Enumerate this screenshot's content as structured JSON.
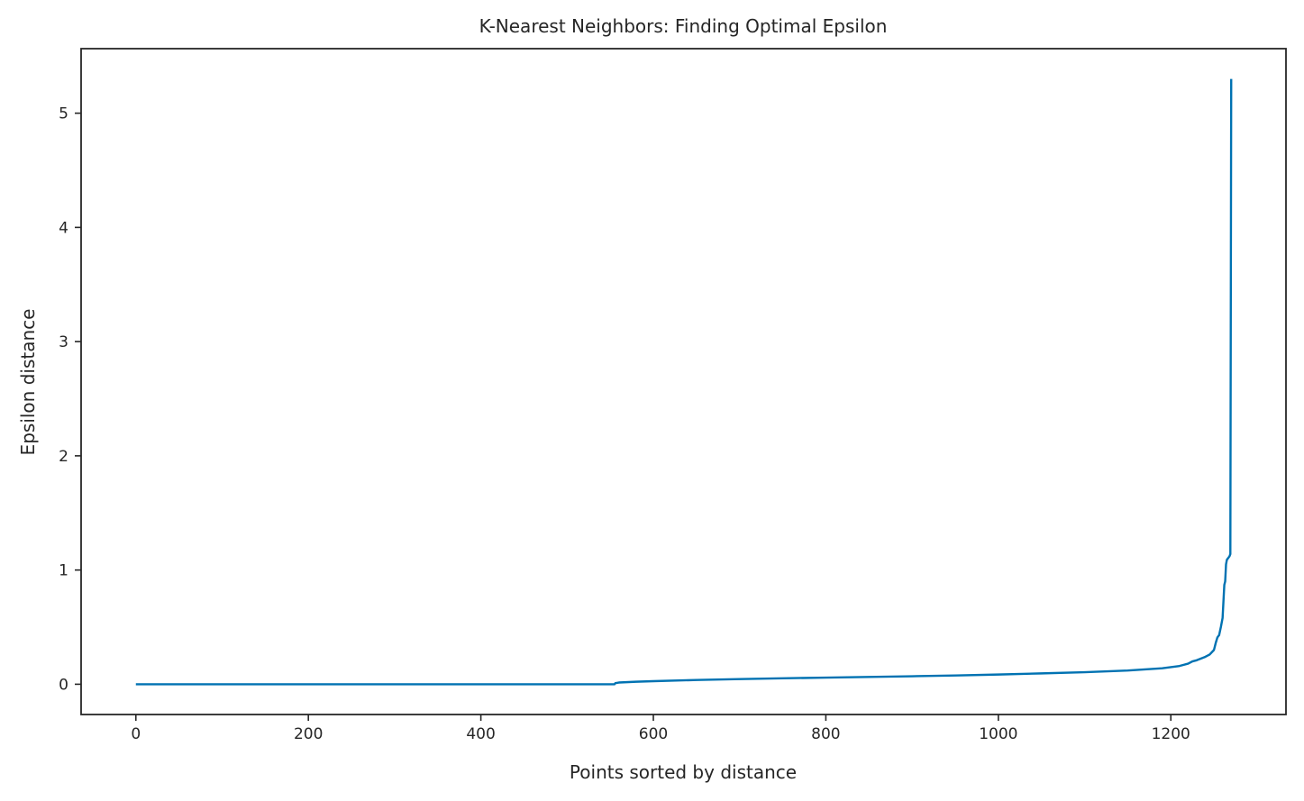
{
  "chart_data": {
    "type": "line",
    "title": "K-Nearest Neighbors: Finding Optimal Epsilon",
    "xlabel": "Points sorted by distance",
    "ylabel": "Epsilon distance",
    "xlim": [
      -63.5,
      1333.5
    ],
    "ylim": [
      -0.265,
      5.565
    ],
    "xticks": [
      0,
      200,
      400,
      600,
      800,
      1000,
      1200
    ],
    "xtick_labels": [
      "0",
      "200",
      "400",
      "600",
      "800",
      "1000",
      "1200"
    ],
    "yticks": [
      0,
      1,
      2,
      3,
      4,
      5
    ],
    "ytick_labels": [
      "0",
      "1",
      "2",
      "3",
      "4",
      "5"
    ],
    "grid": false,
    "line_color": "#0072b2",
    "series": [
      {
        "x": [
          0,
          555,
          556,
          560,
          580,
          600,
          650,
          700,
          750,
          800,
          850,
          900,
          950,
          1000,
          1050,
          1100,
          1150,
          1170,
          1190,
          1200,
          1210,
          1220,
          1225,
          1230,
          1240,
          1245,
          1250,
          1252,
          1254,
          1256,
          1258,
          1260,
          1262,
          1263,
          1264,
          1265,
          1266,
          1268,
          1269,
          1270
        ],
        "y": [
          0.0,
          0.0,
          0.01,
          0.015,
          0.022,
          0.027,
          0.037,
          0.045,
          0.052,
          0.058,
          0.064,
          0.07,
          0.077,
          0.085,
          0.095,
          0.105,
          0.12,
          0.13,
          0.14,
          0.15,
          0.16,
          0.18,
          0.2,
          0.21,
          0.24,
          0.26,
          0.3,
          0.36,
          0.41,
          0.43,
          0.5,
          0.58,
          0.87,
          0.9,
          1.05,
          1.09,
          1.1,
          1.12,
          1.14,
          5.3
        ]
      }
    ]
  }
}
